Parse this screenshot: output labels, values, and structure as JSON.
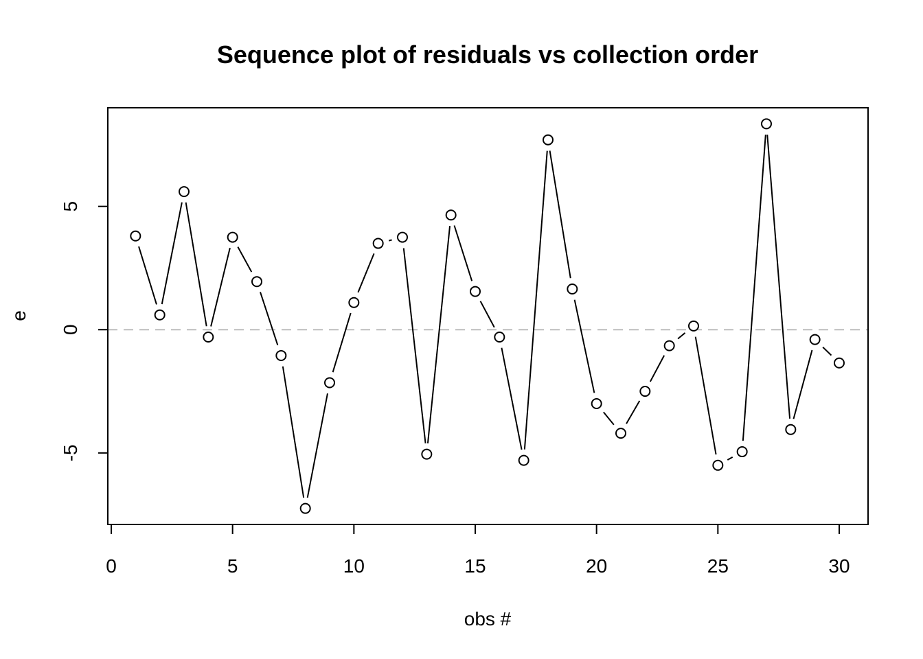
{
  "chart_data": {
    "type": "line",
    "title": "Sequence plot of residuals vs collection order",
    "xlabel": "obs #",
    "ylabel": "e",
    "xlim": [
      0,
      30
    ],
    "ylim": [
      -7.9,
      9.0
    ],
    "x_ticks": [
      0,
      5,
      10,
      15,
      20,
      25,
      30
    ],
    "y_ticks": [
      -5,
      0,
      5
    ],
    "grid": false,
    "legend": "none",
    "marker": "open-circle",
    "line_style": "b",
    "reference_line": {
      "y": 0,
      "style": "dashed",
      "color": "#bebebe"
    },
    "colors": {
      "line": "#000000",
      "marker_fill": "#ffffff",
      "marker_stroke": "#000000",
      "frame": "#000000"
    },
    "x": [
      1,
      2,
      3,
      4,
      5,
      6,
      7,
      8,
      9,
      10,
      11,
      12,
      13,
      14,
      15,
      16,
      17,
      18,
      19,
      20,
      21,
      22,
      23,
      24,
      25,
      26,
      27,
      28,
      29,
      30
    ],
    "series": [
      {
        "values": [
          3.8,
          0.6,
          5.6,
          -0.3,
          3.75,
          1.95,
          -1.05,
          -7.25,
          -2.15,
          1.1,
          3.5,
          3.75,
          -5.05,
          4.65,
          1.55,
          -0.3,
          -5.3,
          7.7,
          1.65,
          -3.0,
          -4.2,
          -2.5,
          -0.65,
          0.15,
          -5.5,
          -4.95,
          8.35,
          -4.05,
          -0.4,
          -1.35
        ]
      }
    ]
  }
}
